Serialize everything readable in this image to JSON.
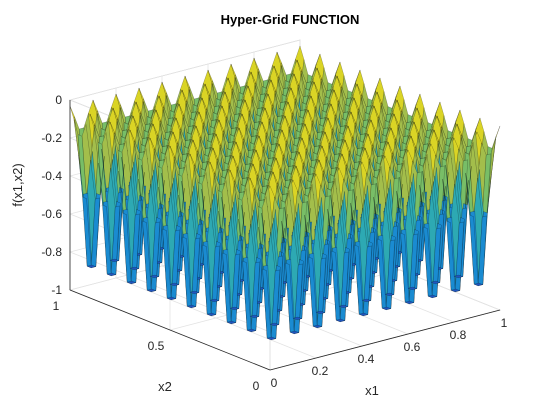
{
  "chart_data": {
    "type": "surface",
    "title": "Hyper-Grid FUNCTION",
    "xlabel": "x1",
    "ylabel": "x2",
    "zlabel": "f(x1,x2)",
    "xlim": [
      0,
      1
    ],
    "ylim": [
      0,
      1
    ],
    "zlim": [
      -1,
      0
    ],
    "x_ticks": [
      "0",
      "0.2",
      "0.4",
      "0.6",
      "0.8",
      "1"
    ],
    "y_ticks": [
      "0",
      "0.5",
      "1"
    ],
    "z_ticks": [
      "-1",
      "-0.8",
      "-0.6",
      "-0.4",
      "-0.2",
      "0"
    ],
    "grid": true,
    "colormap": "parula",
    "mesh_edges": "black",
    "surface": {
      "well_centers": [
        0.05,
        0.15,
        0.25,
        0.35,
        0.45,
        0.55,
        0.65,
        0.75,
        0.85,
        0.95
      ],
      "well_depth": -1,
      "plateau_value": 0
    }
  }
}
